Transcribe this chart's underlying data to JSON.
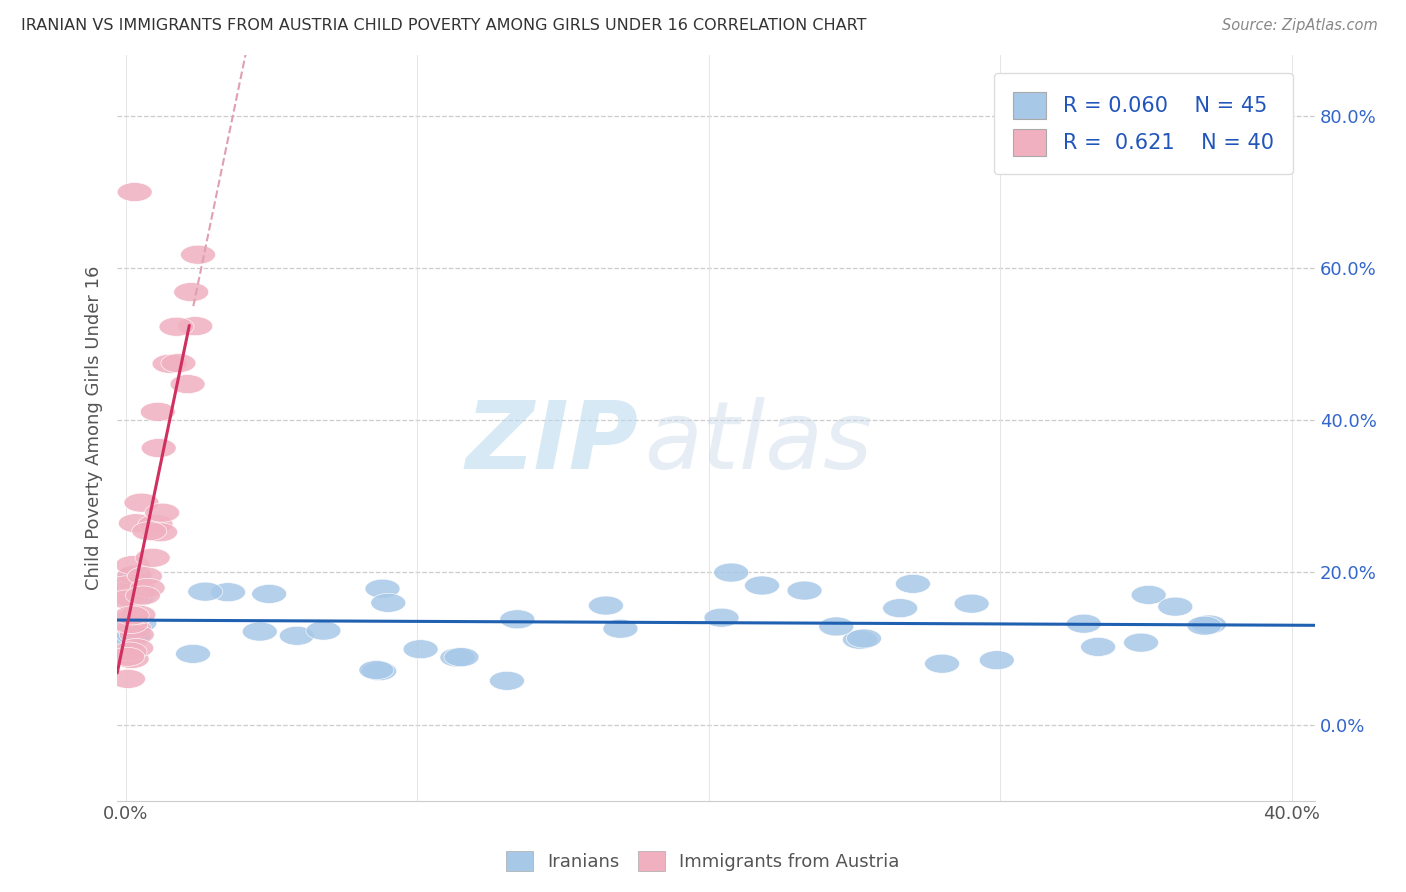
{
  "title": "IRANIAN VS IMMIGRANTS FROM AUSTRIA CHILD POVERTY AMONG GIRLS UNDER 16 CORRELATION CHART",
  "source": "Source: ZipAtlas.com",
  "ylabel": "Child Poverty Among Girls Under 16",
  "xlim": [
    -0.003,
    0.408
  ],
  "ylim": [
    -0.1,
    0.88
  ],
  "yticks": [
    0.0,
    0.2,
    0.4,
    0.6,
    0.8
  ],
  "yticklabels": [
    "0.0%",
    "20.0%",
    "40.0%",
    "60.0%",
    "80.0%"
  ],
  "xtick_left": 0.0,
  "xtick_right": 0.4,
  "xticklabel_left": "0.0%",
  "xticklabel_right": "40.0%",
  "iranians_color": "#a8c8e8",
  "austria_color": "#f0b0c0",
  "trend_iranian_color": "#2060b0",
  "trend_austria_color": "#d03060",
  "legend_R_iranian": "0.060",
  "legend_N_iranian": "45",
  "legend_R_austria": "0.621",
  "legend_N_austria": "40",
  "background_color": "#ffffff",
  "watermark_zip": "ZIP",
  "watermark_atlas": "atlas",
  "grid_color": "#cccccc"
}
